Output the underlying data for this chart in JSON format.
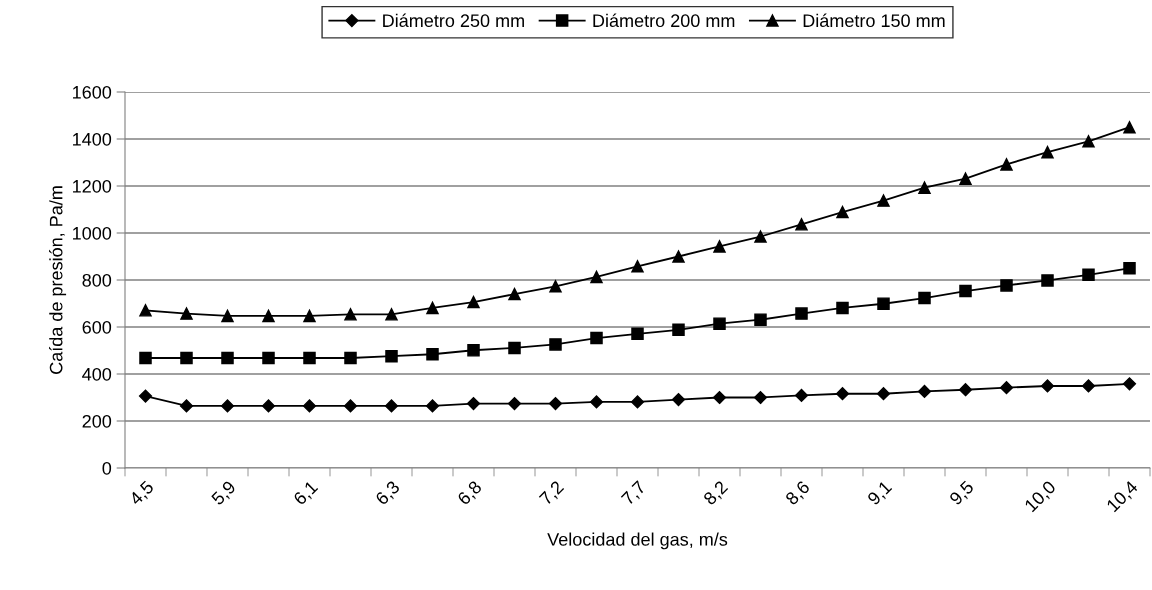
{
  "chart_data": {
    "type": "line",
    "xlabel": "Velocidad del gas, m/s",
    "ylabel": "Caída de presión, Pa/m",
    "categories": [
      "4,5",
      null,
      "5,9",
      null,
      "6,1",
      null,
      "6,3",
      null,
      "6,8",
      null,
      "7,2",
      null,
      "7,7",
      null,
      "8,2",
      null,
      "8,6",
      null,
      "9,1",
      null,
      "9,5",
      null,
      "10,0",
      null,
      "10,4"
    ],
    "series": [
      {
        "name": "Diámetro 250 mm",
        "color": "#000000",
        "marker": "diamond",
        "values": [
          306,
          264,
          264,
          264,
          264,
          264,
          264,
          264,
          274,
          274,
          274,
          281,
          281,
          291,
          300,
          300,
          309,
          316,
          316,
          326,
          333,
          342,
          349,
          349,
          358
        ]
      },
      {
        "name": "Diámetro 200 mm",
        "color": "#000000",
        "marker": "square",
        "values": [
          468,
          468,
          468,
          468,
          468,
          468,
          476,
          484,
          501,
          511,
          526,
          553,
          571,
          588,
          614,
          631,
          657,
          681,
          699,
          723,
          753,
          777,
          798,
          822,
          850
        ]
      },
      {
        "name": "Diámetro 150 mm",
        "color": "#000000",
        "marker": "triangle",
        "values": [
          671,
          657,
          647,
          647,
          647,
          654,
          654,
          681,
          706,
          740,
          773,
          813,
          858,
          900,
          943,
          985,
          1037,
          1089,
          1138,
          1193,
          1231,
          1292,
          1344,
          1390,
          1450
        ]
      }
    ],
    "ylim": [
      0,
      1600
    ],
    "yticks": [
      0,
      200,
      400,
      600,
      800,
      1000,
      1200,
      1400,
      1600
    ],
    "grid": "y",
    "legend": "top",
    "line_style": "solid"
  }
}
